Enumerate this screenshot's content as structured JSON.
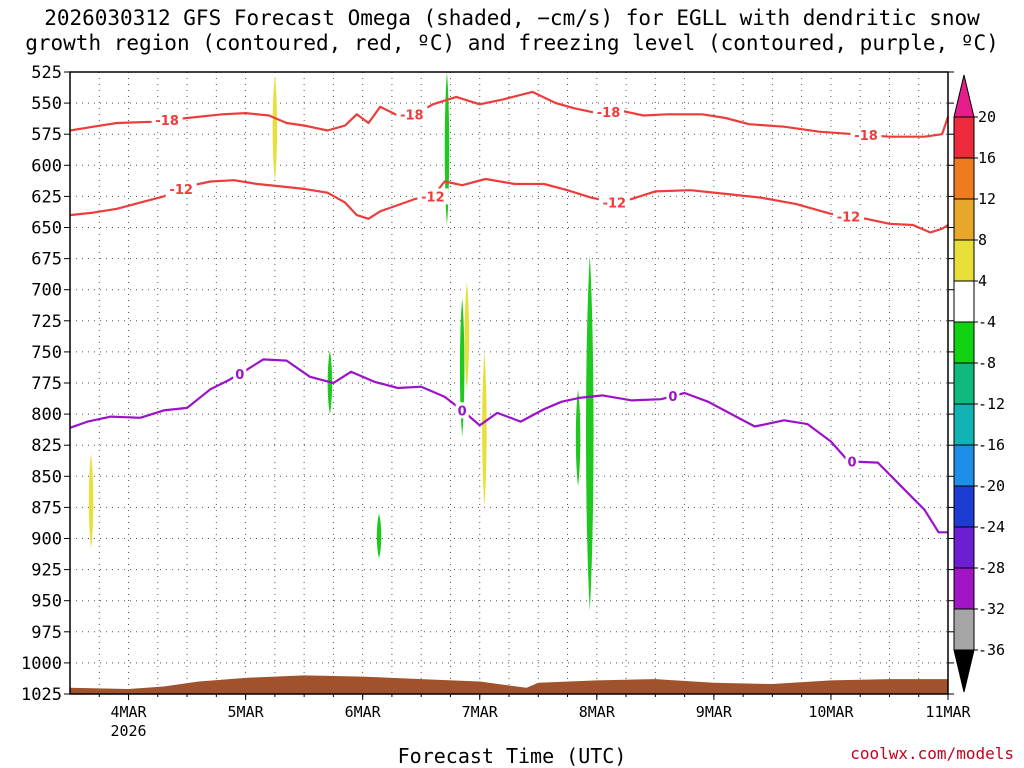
{
  "title": "2026030312 GFS Forecast Omega (shaded, −cm/s) for EGLL with dendritic snow\ngrowth region (contoured, red, ºC) and freezing level (contoured, purple, ºC)",
  "xaxis_title": "Forecast Time (UTC)",
  "credit": "coolwx.com/models",
  "chart_data": {
    "type": "time-height",
    "x_start_day": 3.5,
    "x_end_day": 11.0,
    "y_min": 525,
    "y_max": 1025,
    "y_ticks": [
      525,
      550,
      575,
      600,
      625,
      650,
      675,
      700,
      725,
      750,
      775,
      800,
      825,
      850,
      875,
      900,
      925,
      950,
      975,
      1000,
      1025
    ],
    "x_ticks": [
      {
        "day": 4,
        "label": "4MAR",
        "sub": "2026"
      },
      {
        "day": 5,
        "label": "5MAR"
      },
      {
        "day": 6,
        "label": "6MAR"
      },
      {
        "day": 7,
        "label": "7MAR"
      },
      {
        "day": 8,
        "label": "8MAR"
      },
      {
        "day": 9,
        "label": "9MAR"
      },
      {
        "day": 10,
        "label": "10MAR"
      },
      {
        "day": 11,
        "label": "11MAR"
      }
    ],
    "contours": [
      {
        "name": "-18C isotherm",
        "value": -18,
        "color": "#ee3c3c",
        "points": [
          [
            3.5,
            572
          ],
          [
            3.7,
            569
          ],
          [
            3.9,
            566
          ],
          [
            4.2,
            565
          ],
          [
            4.5,
            562
          ],
          [
            4.8,
            559
          ],
          [
            5.0,
            558
          ],
          [
            5.2,
            560
          ],
          [
            5.35,
            566
          ],
          [
            5.5,
            568
          ],
          [
            5.7,
            572
          ],
          [
            5.85,
            568
          ],
          [
            5.95,
            559
          ],
          [
            6.05,
            566
          ],
          [
            6.15,
            553
          ],
          [
            6.3,
            560
          ],
          [
            6.45,
            559
          ],
          [
            6.6,
            551
          ],
          [
            6.8,
            545
          ],
          [
            7.0,
            551
          ],
          [
            7.2,
            547
          ],
          [
            7.45,
            541
          ],
          [
            7.65,
            550
          ],
          [
            7.8,
            554
          ],
          [
            8.0,
            558
          ],
          [
            8.2,
            556
          ],
          [
            8.4,
            560
          ],
          [
            8.6,
            559
          ],
          [
            8.9,
            559
          ],
          [
            9.1,
            562
          ],
          [
            9.3,
            567
          ],
          [
            9.6,
            569
          ],
          [
            9.9,
            573
          ],
          [
            10.2,
            575
          ],
          [
            10.5,
            577
          ],
          [
            10.8,
            577
          ],
          [
            10.95,
            575
          ],
          [
            11.0,
            561
          ]
        ],
        "labels": [
          {
            "day": 4.33,
            "text": "-18"
          },
          {
            "day": 6.42,
            "text": "-18"
          },
          {
            "day": 8.1,
            "text": "-18"
          },
          {
            "day": 10.3,
            "text": "-18"
          }
        ]
      },
      {
        "name": "-12C isotherm",
        "value": -12,
        "color": "#ee3c3c",
        "points": [
          [
            3.5,
            640
          ],
          [
            3.7,
            638
          ],
          [
            3.9,
            635
          ],
          [
            4.1,
            630
          ],
          [
            4.3,
            625
          ],
          [
            4.5,
            617
          ],
          [
            4.7,
            613
          ],
          [
            4.9,
            612
          ],
          [
            5.1,
            615
          ],
          [
            5.3,
            617
          ],
          [
            5.5,
            619
          ],
          [
            5.7,
            622
          ],
          [
            5.85,
            630
          ],
          [
            5.95,
            640
          ],
          [
            6.05,
            643
          ],
          [
            6.15,
            637
          ],
          [
            6.3,
            632
          ],
          [
            6.45,
            627
          ],
          [
            6.6,
            625
          ],
          [
            6.7,
            613
          ],
          [
            6.85,
            616
          ],
          [
            7.05,
            611
          ],
          [
            7.3,
            615
          ],
          [
            7.55,
            615
          ],
          [
            7.75,
            620
          ],
          [
            7.95,
            626
          ],
          [
            8.15,
            630
          ],
          [
            8.3,
            627
          ],
          [
            8.5,
            621
          ],
          [
            8.8,
            620
          ],
          [
            9.1,
            623
          ],
          [
            9.4,
            626
          ],
          [
            9.7,
            631
          ],
          [
            10.0,
            639
          ],
          [
            10.3,
            643
          ],
          [
            10.5,
            647
          ],
          [
            10.7,
            648
          ],
          [
            10.85,
            654
          ],
          [
            10.95,
            651
          ],
          [
            11.0,
            648
          ]
        ],
        "labels": [
          {
            "day": 4.45,
            "text": "-12"
          },
          {
            "day": 6.6,
            "text": "-12"
          },
          {
            "day": 8.15,
            "text": "-12"
          },
          {
            "day": 10.15,
            "text": "-12"
          }
        ]
      },
      {
        "name": "0C freezing level",
        "value": 0,
        "color": "#9b13c9",
        "points": [
          [
            3.5,
            811
          ],
          [
            3.65,
            806
          ],
          [
            3.85,
            802
          ],
          [
            4.1,
            803
          ],
          [
            4.3,
            797
          ],
          [
            4.5,
            795
          ],
          [
            4.7,
            780
          ],
          [
            4.85,
            773
          ],
          [
            5.0,
            765
          ],
          [
            5.15,
            756
          ],
          [
            5.35,
            757
          ],
          [
            5.55,
            770
          ],
          [
            5.75,
            775
          ],
          [
            5.9,
            766
          ],
          [
            6.1,
            774
          ],
          [
            6.3,
            779
          ],
          [
            6.5,
            778
          ],
          [
            6.7,
            786
          ],
          [
            6.85,
            797
          ],
          [
            7.0,
            809
          ],
          [
            7.15,
            799
          ],
          [
            7.35,
            806
          ],
          [
            7.55,
            796
          ],
          [
            7.7,
            790
          ],
          [
            7.85,
            787
          ],
          [
            8.05,
            785
          ],
          [
            8.3,
            789
          ],
          [
            8.55,
            788
          ],
          [
            8.75,
            783
          ],
          [
            8.95,
            790
          ],
          [
            9.15,
            800
          ],
          [
            9.35,
            810
          ],
          [
            9.6,
            805
          ],
          [
            9.8,
            808
          ],
          [
            10.0,
            822
          ],
          [
            10.15,
            838
          ],
          [
            10.4,
            839
          ],
          [
            10.6,
            858
          ],
          [
            10.8,
            877
          ],
          [
            10.92,
            895
          ],
          [
            11.0,
            895
          ]
        ],
        "labels": [
          {
            "day": 4.95,
            "text": "0"
          },
          {
            "day": 6.85,
            "text": "0"
          },
          {
            "day": 8.65,
            "text": "0"
          },
          {
            "day": 10.18,
            "text": "0"
          }
        ]
      }
    ],
    "shaded_cells": [
      {
        "day": 3.68,
        "p_top": 832,
        "p_bottom": 908,
        "color": "#e8df3a"
      },
      {
        "day": 5.25,
        "p_top": 528,
        "p_bottom": 612,
        "color": "#e8df3a"
      },
      {
        "day": 5.72,
        "p_top": 749,
        "p_bottom": 800,
        "color": "#1ec81e"
      },
      {
        "day": 6.14,
        "p_top": 880,
        "p_bottom": 916,
        "color": "#1ec81e"
      },
      {
        "day": 6.72,
        "p_top": 525,
        "p_bottom": 648,
        "color": "#1ec81e"
      },
      {
        "day": 6.85,
        "p_top": 707,
        "p_bottom": 818,
        "color": "#1ec81e"
      },
      {
        "day": 6.89,
        "p_top": 694,
        "p_bottom": 780,
        "color": "#e8df3a"
      },
      {
        "day": 7.04,
        "p_top": 750,
        "p_bottom": 874,
        "color": "#e8df3a"
      },
      {
        "day": 7.84,
        "p_top": 780,
        "p_bottom": 858,
        "color": "#1ec81e"
      },
      {
        "day": 7.94,
        "p_top": 672,
        "p_bottom": 958,
        "color": "#1ec81e"
      }
    ],
    "terrain": {
      "color": "#a0522d",
      "points": [
        [
          3.5,
          1020
        ],
        [
          4.0,
          1021
        ],
        [
          4.3,
          1019
        ],
        [
          4.6,
          1015
        ],
        [
          5.0,
          1012
        ],
        [
          5.5,
          1010
        ],
        [
          6.0,
          1011
        ],
        [
          6.5,
          1013
        ],
        [
          7.0,
          1015
        ],
        [
          7.4,
          1020
        ],
        [
          7.5,
          1016
        ],
        [
          8.0,
          1014
        ],
        [
          8.5,
          1013
        ],
        [
          9.0,
          1016
        ],
        [
          9.5,
          1017
        ],
        [
          10.0,
          1014
        ],
        [
          10.5,
          1013
        ],
        [
          11.0,
          1013
        ]
      ]
    },
    "colorbar": {
      "ticks": [
        "20",
        "16",
        "12",
        "8",
        "4",
        "-4",
        "-8",
        "-12",
        "-16",
        "-20",
        "-24",
        "-28",
        "-32",
        "-36"
      ],
      "colors": [
        "#ee2a3c",
        "#f07a1e",
        "#e6a72a",
        "#e8df3a",
        "#ffffff",
        "#12d312",
        "#10b97c",
        "#12b3b3",
        "#1e8fe6",
        "#1e3cd2",
        "#6e1ed2",
        "#a015c6",
        "#a5a5a5"
      ],
      "top_arrow": "#e61e8c",
      "bottom_arrow": "#000000"
    }
  }
}
